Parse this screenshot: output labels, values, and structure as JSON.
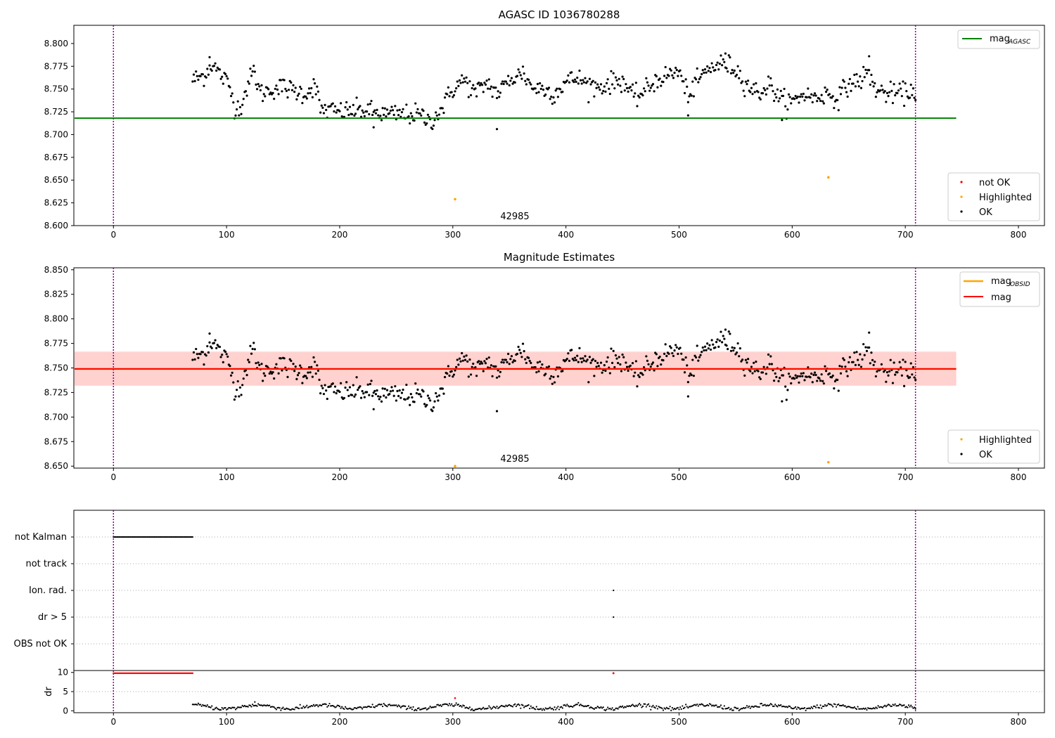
{
  "figure": {
    "panel1_title": "AGASC ID 1036780288",
    "panel2_title": "Magnitude Estimates",
    "obsid_label": "42985"
  },
  "legends": {
    "top_right_1": "mag",
    "top_right_1_sub": "AGASC",
    "bottom_right_1": [
      "not OK",
      "Highlighted",
      "OK"
    ],
    "top_right_2": "mag",
    "top_right_2_sub": "OBSID",
    "top_right_2b": "mag",
    "bottom_right_2": [
      "Highlighted",
      "OK"
    ]
  },
  "colors": {
    "ok": "#000000",
    "not_ok": "#ff0000",
    "highlighted": "#ffa500",
    "mag_agasc": "#008000",
    "mag_obsid": "#ffa500",
    "mag": "#ff0000",
    "band_obsid": "#ffa07a",
    "band_mag": "#ffc0cb",
    "obs_boundary": "#800080"
  },
  "chart_data": [
    {
      "type": "scatter",
      "title": "AGASC ID 1036780288",
      "xlim": [
        -35,
        823
      ],
      "ylim": [
        8.6,
        8.82
      ],
      "xticks": [
        0,
        100,
        200,
        300,
        400,
        500,
        600,
        700,
        800
      ],
      "yticks": [
        8.6,
        8.625,
        8.65,
        8.675,
        8.7,
        8.725,
        8.75,
        8.775,
        8.8
      ],
      "hlines": [
        {
          "name": "mag_AGASC",
          "y": 8.718,
          "xrange": [
            -35,
            745
          ],
          "color": "#008000"
        }
      ],
      "vlines": [
        0,
        709
      ],
      "annotation": {
        "text": "42985",
        "x": 354,
        "y": 8.61
      },
      "highlighted": [
        {
          "x": 302,
          "y": 8.629
        },
        {
          "x": 632,
          "y": 8.653
        }
      ],
      "ok_trend": [
        [
          70,
          8.76
        ],
        [
          80,
          8.765
        ],
        [
          87,
          8.778
        ],
        [
          95,
          8.765
        ],
        [
          102,
          8.755
        ],
        [
          108,
          8.728
        ],
        [
          113,
          8.733
        ],
        [
          118,
          8.752
        ],
        [
          124,
          8.77
        ],
        [
          130,
          8.745
        ],
        [
          140,
          8.75
        ],
        [
          150,
          8.752
        ],
        [
          160,
          8.748
        ],
        [
          170,
          8.745
        ],
        [
          178,
          8.755
        ],
        [
          183,
          8.728
        ],
        [
          200,
          8.725
        ],
        [
          220,
          8.727
        ],
        [
          240,
          8.722
        ],
        [
          260,
          8.722
        ],
        [
          270,
          8.722
        ],
        [
          280,
          8.714
        ],
        [
          290,
          8.728
        ],
        [
          300,
          8.75
        ],
        [
          310,
          8.76
        ],
        [
          320,
          8.745
        ],
        [
          330,
          8.757
        ],
        [
          340,
          8.745
        ],
        [
          350,
          8.76
        ],
        [
          362,
          8.768
        ],
        [
          370,
          8.752
        ],
        [
          380,
          8.75
        ],
        [
          390,
          8.745
        ],
        [
          400,
          8.758
        ],
        [
          410,
          8.762
        ],
        [
          420,
          8.755
        ],
        [
          430,
          8.752
        ],
        [
          440,
          8.757
        ],
        [
          450,
          8.76
        ],
        [
          460,
          8.74
        ],
        [
          470,
          8.748
        ],
        [
          480,
          8.76
        ],
        [
          490,
          8.765
        ],
        [
          500,
          8.77
        ],
        [
          505,
          8.75
        ],
        [
          510,
          8.745
        ],
        [
          520,
          8.765
        ],
        [
          530,
          8.775
        ],
        [
          540,
          8.778
        ],
        [
          550,
          8.772
        ],
        [
          560,
          8.755
        ],
        [
          570,
          8.745
        ],
        [
          580,
          8.755
        ],
        [
          590,
          8.738
        ],
        [
          600,
          8.735
        ],
        [
          610,
          8.745
        ],
        [
          620,
          8.74
        ],
        [
          630,
          8.745
        ],
        [
          640,
          8.74
        ],
        [
          650,
          8.755
        ],
        [
          660,
          8.76
        ],
        [
          667,
          8.768
        ],
        [
          675,
          8.748
        ],
        [
          685,
          8.745
        ],
        [
          695,
          8.745
        ],
        [
          708,
          8.748
        ]
      ],
      "ok_spread": 0.008,
      "ok_range": [
        70,
        709
      ],
      "ok_outliers": [
        [
          339,
          8.706
        ],
        [
          230,
          8.708
        ],
        [
          508,
          8.721
        ],
        [
          591,
          8.716
        ],
        [
          85,
          8.785
        ],
        [
          541,
          8.789
        ],
        [
          668,
          8.786
        ]
      ]
    },
    {
      "type": "scatter",
      "title": "Magnitude Estimates",
      "xlim": [
        -35,
        823
      ],
      "ylim": [
        8.648,
        8.852
      ],
      "xticks": [
        0,
        100,
        200,
        300,
        400,
        500,
        600,
        700,
        800
      ],
      "yticks": [
        8.65,
        8.675,
        8.7,
        8.725,
        8.75,
        8.775,
        8.8,
        8.825,
        8.85
      ],
      "hlines": [
        {
          "name": "mag_OBSID",
          "y": 8.749,
          "xrange": [
            -35,
            745
          ],
          "color": "#ffa500"
        },
        {
          "name": "mag",
          "y": 8.749,
          "xrange": [
            -35,
            745
          ],
          "color": "#ff0000"
        }
      ],
      "bands": [
        {
          "name": "mag_OBSID_band",
          "y": [
            8.732,
            8.766
          ],
          "xrange": [
            -35,
            745
          ]
        },
        {
          "name": "mag_band",
          "y": [
            8.732,
            8.767
          ],
          "xrange": [
            -35,
            745
          ]
        }
      ],
      "vlines": [
        0,
        709
      ],
      "annotation": {
        "text": "42985",
        "x": 354,
        "y": 8.655
      },
      "highlighted": [
        {
          "x": 302,
          "y": 8.65
        },
        {
          "x": 632,
          "y": 8.654
        }
      ]
    },
    {
      "type": "scatter",
      "title": "",
      "xlim": [
        -35,
        823
      ],
      "xticks": [
        0,
        100,
        200,
        300,
        400,
        500,
        600,
        700,
        800
      ],
      "flag_rows": [
        "not Kalman",
        "not track",
        "Ion. rad.",
        "dr > 5",
        "OBS not OK"
      ],
      "flag_points": {
        "not Kalman": {
          "xrange": [
            0,
            70
          ]
        },
        "Ion. rad.": {
          "x": [
            442
          ]
        },
        "dr > 5": {
          "x": [
            442
          ]
        }
      },
      "dr": {
        "ylabel": "dr",
        "yticks": [
          0,
          5,
          10
        ],
        "ylim": [
          -0.5,
          10.5
        ],
        "clipped_at_10": {
          "xrange": [
            0,
            70
          ],
          "extra": [
            442
          ]
        },
        "highlight_red": [
          {
            "x": 302,
            "y": 3.3
          }
        ],
        "range": [
          70,
          709
        ],
        "level": 1.0
      }
    }
  ]
}
